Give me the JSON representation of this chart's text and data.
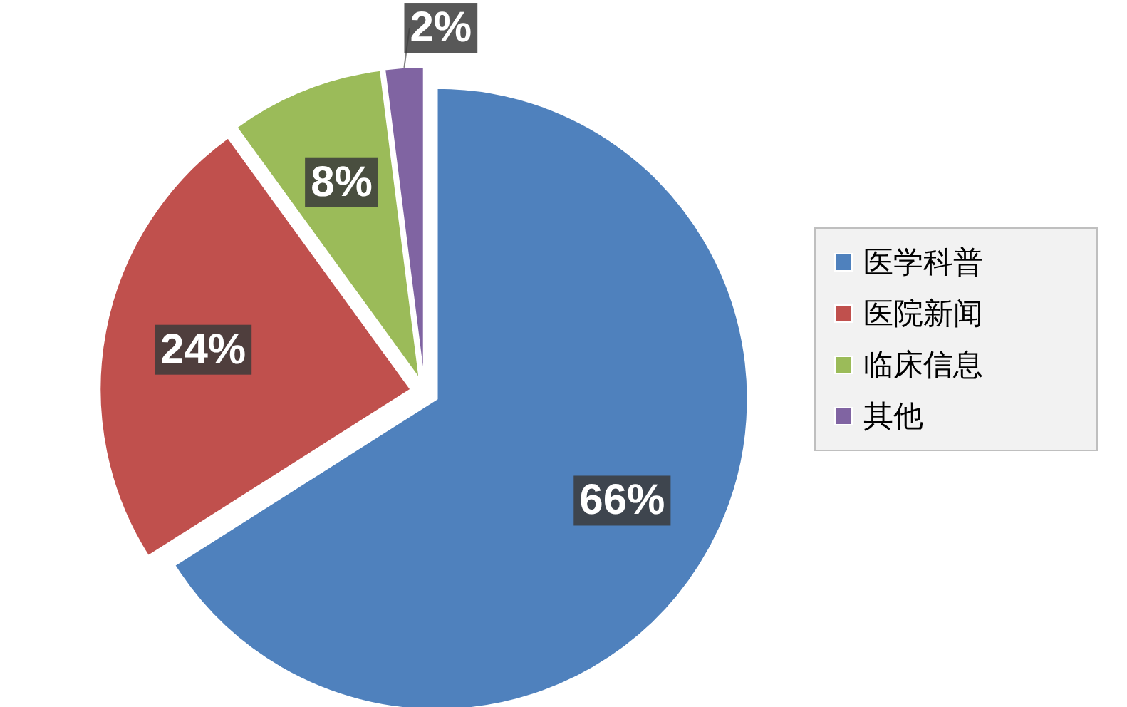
{
  "chart_data": {
    "type": "pie",
    "categories": [
      "医学科普",
      "医院新闻",
      "临床信息",
      "其他"
    ],
    "values": [
      66,
      24,
      8,
      2
    ],
    "colors": [
      "#4f81bd",
      "#c0504d",
      "#9bbb59",
      "#8064a2"
    ],
    "value_labels": [
      "66%",
      "24%",
      "8%",
      "2%"
    ],
    "legend": "right"
  }
}
